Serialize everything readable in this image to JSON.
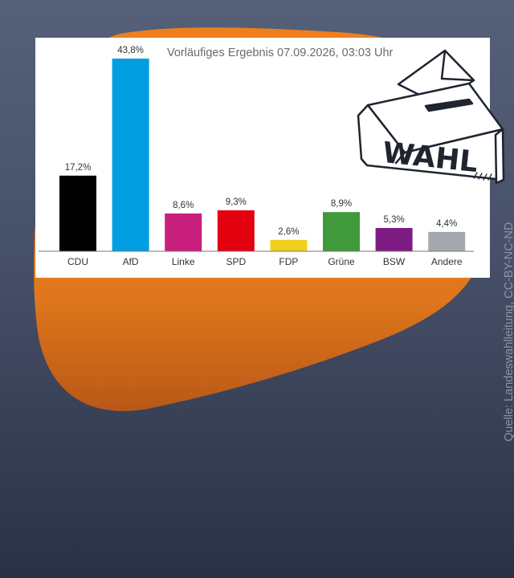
{
  "chart_data": {
    "type": "bar",
    "title": "Vorläufiges Ergebnis 07.09.2026, 03:03 Uhr",
    "categories": [
      "CDU",
      "AfD",
      "Linke",
      "SPD",
      "FDP",
      "Grüne",
      "BSW",
      "Andere"
    ],
    "values": [
      17.2,
      43.8,
      8.6,
      9.3,
      2.6,
      8.9,
      5.3,
      4.4
    ],
    "value_labels": [
      "17,2%",
      "43,8%",
      "8,6%",
      "9,3%",
      "2,6%",
      "8,9%",
      "5,3%",
      "4,4%"
    ],
    "colors": [
      "#000000",
      "#009ee0",
      "#c91f7c",
      "#e3000f",
      "#f2cf1d",
      "#409a3c",
      "#7e1b83",
      "#a5a9af"
    ],
    "ylim": [
      0,
      43.8
    ],
    "xlabel": "",
    "ylabel": "",
    "grid": false
  },
  "graphic": {
    "ballot_text": "WAHL",
    "blob_color": "#e0771c"
  },
  "source": "Quelle: Landeswahlleitung, CC-BY-NC-ND"
}
